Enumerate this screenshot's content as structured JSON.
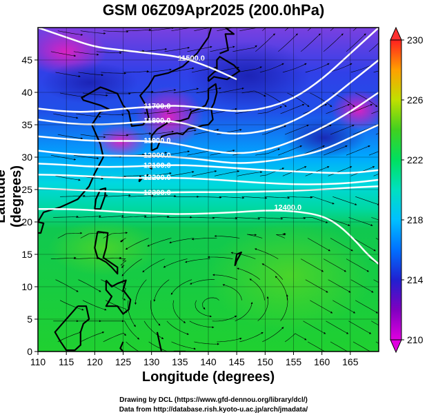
{
  "title": "GSM 06Z09Apr2025 (200.0hPa)",
  "credits": {
    "line1": "Drawing by DCL (https://www.gfd-dennou.org/library/dcl/)",
    "line2": "Data from http://database.rish.kyoto-u.ac.jp/arch/jmadata/"
  },
  "chart_data": {
    "type": "heatmap",
    "title": "GSM 06Z09Apr2025 (200.0hPa)",
    "xlabel": "Longitude (degrees)",
    "ylabel": "Latitude  (degrees)",
    "xlim": [
      110,
      170
    ],
    "ylim": [
      0,
      50
    ],
    "xticks": [
      110,
      115,
      120,
      125,
      130,
      135,
      140,
      145,
      150,
      155,
      160,
      165
    ],
    "yticks": [
      0,
      5,
      10,
      15,
      20,
      25,
      30,
      35,
      40,
      45
    ],
    "grid": true,
    "colorbar": {
      "min": 210,
      "max": 230,
      "ticks": [
        210,
        214,
        218,
        222,
        226,
        230
      ],
      "colors": [
        "#e000e0",
        "#8000c0",
        "#2020d0",
        "#00a0ff",
        "#00e0e0",
        "#00e080",
        "#20d020",
        "#a0e000",
        "#ffe000",
        "#ff8000",
        "#ff2000"
      ]
    },
    "field": "temperature (shaded), geopotential height (white contours), wind (streamlines)",
    "contours": [
      {
        "label": "11500.0",
        "lon": [
          110,
          115,
          120,
          125,
          130,
          135,
          140,
          145
        ],
        "lat": [
          50,
          48.5,
          47,
          46.5,
          46,
          45.5,
          44,
          42
        ]
      },
      {
        "label": "11700.0",
        "lon": [
          110,
          115,
          120,
          125,
          130,
          135,
          140,
          145,
          150,
          155,
          160,
          165,
          170
        ],
        "lat": [
          37.5,
          37,
          37,
          37.5,
          37.8,
          38,
          37.5,
          37,
          37.5,
          39,
          42,
          46,
          50
        ]
      },
      {
        "label": "11800.0",
        "lon": [
          110,
          115,
          120,
          125,
          130,
          135,
          140,
          145,
          150,
          155,
          160,
          165,
          170
        ],
        "lat": [
          35.8,
          35.2,
          35,
          35.2,
          35.6,
          35.5,
          34,
          33.5,
          34,
          35.5,
          38,
          41.5,
          45
        ]
      },
      {
        "label": "11900.0",
        "lon": [
          110,
          115,
          120,
          125,
          130,
          135,
          140,
          145,
          150,
          155,
          160,
          165,
          170
        ],
        "lat": [
          33.2,
          32.8,
          32.5,
          32.5,
          32.5,
          32,
          31,
          30.5,
          31,
          32.5,
          34.5,
          37,
          40
        ]
      },
      {
        "label": "12000.0",
        "lon": [
          110,
          115,
          120,
          125,
          130,
          135,
          140,
          145,
          150,
          155,
          160,
          165,
          170
        ],
        "lat": [
          31,
          30.5,
          30.3,
          30.2,
          30.2,
          30,
          29.5,
          29,
          29.3,
          30,
          31,
          33,
          35
        ]
      },
      {
        "label": "12100.0",
        "lon": [
          110,
          115,
          120,
          125,
          130,
          135,
          140,
          145,
          150,
          155,
          160,
          165,
          170
        ],
        "lat": [
          29,
          28.8,
          28.5,
          28.5,
          28.7,
          28.8,
          28.6,
          28.3,
          28,
          27.8,
          27.6,
          27.5,
          28
        ]
      },
      {
        "label": "12200.0",
        "lon": [
          110,
          115,
          120,
          125,
          130,
          135,
          140,
          145,
          150,
          155,
          160,
          165,
          170
        ],
        "lat": [
          27.3,
          27.2,
          27,
          26.8,
          26.8,
          26.8,
          26.6,
          26.3,
          26,
          25.8,
          25.8,
          26,
          26.5
        ]
      },
      {
        "label": "12300.0",
        "lon": [
          110,
          115,
          120,
          125,
          130,
          135,
          140,
          145,
          150,
          155,
          160,
          165,
          170
        ],
        "lat": [
          25.2,
          25,
          24.8,
          24.6,
          24.5,
          24.6,
          24.6,
          24.6,
          24.7,
          24.8,
          25,
          25.3,
          25.5
        ]
      },
      {
        "label": "12400.0",
        "lon": [
          110,
          115,
          120,
          125,
          130,
          135,
          140,
          145,
          150,
          155,
          160,
          163,
          166,
          168,
          170
        ],
        "lat": [
          22,
          22,
          21.8,
          21.5,
          21.3,
          21.2,
          21.3,
          21.5,
          21.8,
          21.7,
          21,
          19.5,
          17,
          15,
          13.5
        ]
      }
    ]
  }
}
